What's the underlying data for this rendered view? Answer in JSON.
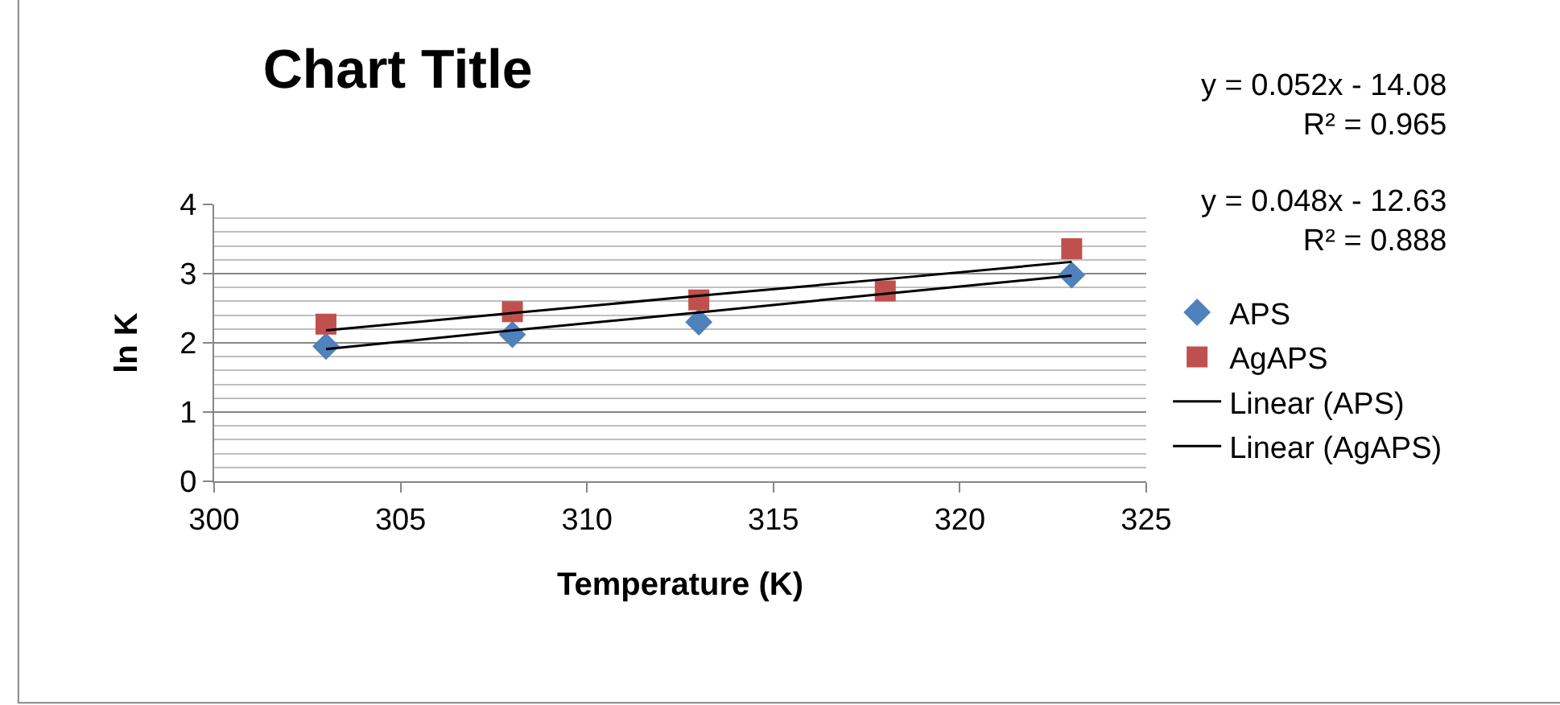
{
  "chart_data": {
    "type": "scatter",
    "title": "Chart Title",
    "xlabel": "Temperature (K)",
    "ylabel": "ln K",
    "x": [
      303,
      308,
      313,
      318,
      323
    ],
    "series": [
      {
        "name": "APS",
        "color": "#4f81bd",
        "marker": "diamond",
        "values": [
          1.95,
          2.12,
          2.3,
          null,
          2.98
        ]
      },
      {
        "name": "AgAPS",
        "color": "#c0504d",
        "marker": "square",
        "values": [
          2.27,
          2.45,
          2.62,
          2.75,
          3.36
        ]
      },
      {
        "name": "Linear (APS)",
        "type": "line",
        "color": "#000000",
        "marker": "none",
        "values": [
          1.91,
          2.18,
          2.44,
          2.71,
          2.97
        ]
      },
      {
        "name": "Linear (AgAPS)",
        "type": "line",
        "color": "#000000",
        "marker": "none",
        "values": [
          2.18,
          2.43,
          2.68,
          2.92,
          3.17
        ]
      }
    ],
    "xlim": [
      300,
      325
    ],
    "xticks": [
      300,
      305,
      310,
      315,
      320,
      325
    ],
    "ylim": [
      0,
      4
    ],
    "yticks": [
      0,
      1,
      2,
      3,
      4
    ],
    "grid": "y",
    "legend": "right",
    "annotations": [
      "y = 0.052x - 14.08\nR² = 0.965",
      "y = 0.048x - 12.63\nR² = 0.888"
    ]
  }
}
